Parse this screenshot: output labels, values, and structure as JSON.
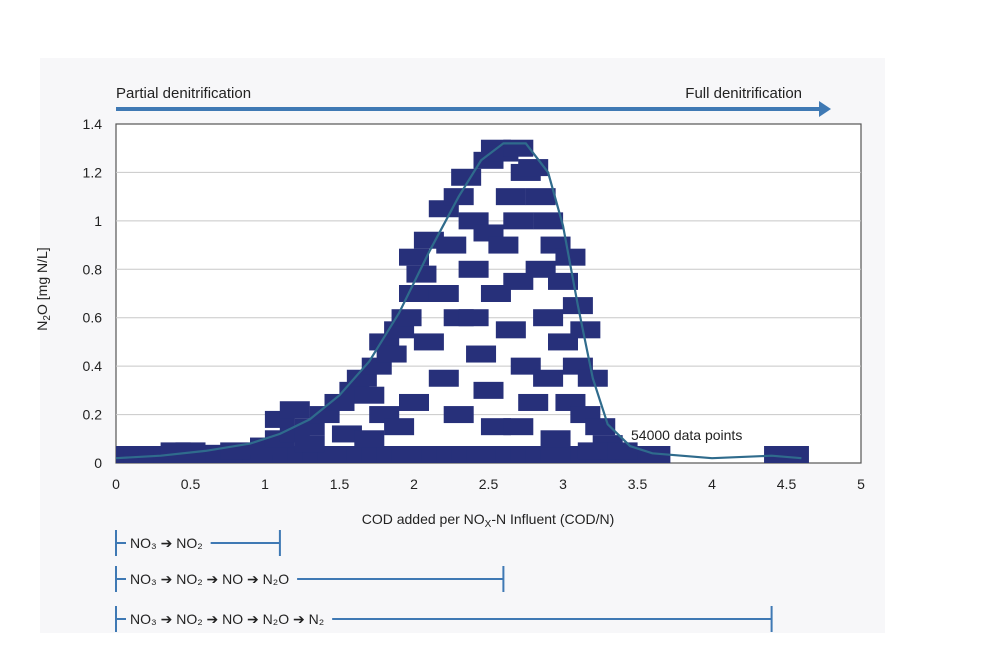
{
  "banner": {
    "left_label": "Partial denitrification",
    "right_label": "Full denitrification",
    "arrow_color": "#3f79b4"
  },
  "chart_data": {
    "type": "scatter",
    "title": "",
    "xlabel": "COD added per NOX-N Influent (COD/N)",
    "ylabel": "N2O [mg N/L]",
    "xlim": [
      0,
      5
    ],
    "ylim": [
      0,
      1.4
    ],
    "x_ticks": [
      "0",
      "0.5",
      "1",
      "1.5",
      "2",
      "2.5",
      "3",
      "3.5",
      "4",
      "4.5",
      "5"
    ],
    "y_ticks": [
      "0",
      "0.2",
      "0.4",
      "0.6",
      "0.8",
      "1",
      "1.2",
      "1.4"
    ],
    "grid": "horizontal",
    "annotation": "54000 data points",
    "marker_color": "#27307a",
    "curve_color": "#2f6b8c",
    "series": [
      {
        "kind": "scatter",
        "points": [
          [
            0.05,
            0.0
          ],
          [
            0.15,
            0.0
          ],
          [
            0.25,
            0.0
          ],
          [
            0.35,
            0.0
          ],
          [
            0.45,
            0.0
          ],
          [
            0.55,
            0.0
          ],
          [
            0.65,
            0.0
          ],
          [
            0.75,
            0.0
          ],
          [
            0.85,
            0.0
          ],
          [
            0.95,
            0.0
          ],
          [
            1.05,
            0.0
          ],
          [
            1.15,
            0.0
          ],
          [
            1.25,
            0.0
          ],
          [
            1.35,
            0.0
          ],
          [
            1.45,
            0.0
          ],
          [
            1.55,
            0.0
          ],
          [
            1.65,
            0.0
          ],
          [
            1.75,
            0.0
          ],
          [
            1.85,
            0.0
          ],
          [
            1.95,
            0.0
          ],
          [
            2.05,
            0.0
          ],
          [
            2.15,
            0.0
          ],
          [
            2.25,
            0.0
          ],
          [
            2.35,
            0.0
          ],
          [
            2.45,
            0.0
          ],
          [
            2.55,
            0.0
          ],
          [
            2.65,
            0.0
          ],
          [
            2.75,
            0.0
          ],
          [
            2.85,
            0.0
          ],
          [
            2.95,
            0.0
          ],
          [
            3.05,
            0.0
          ],
          [
            3.15,
            0.0
          ],
          [
            3.25,
            0.0
          ],
          [
            3.35,
            0.0
          ],
          [
            3.45,
            0.0
          ],
          [
            3.55,
            0.0
          ],
          [
            3.62,
            0.0
          ],
          [
            4.45,
            0.0
          ],
          [
            4.55,
            0.0
          ],
          [
            0.4,
            0.05
          ],
          [
            0.5,
            0.05
          ],
          [
            0.7,
            0.04
          ],
          [
            0.8,
            0.05
          ],
          [
            1.0,
            0.07
          ],
          [
            1.1,
            0.1
          ],
          [
            1.2,
            0.12
          ],
          [
            1.3,
            0.15
          ],
          [
            1.1,
            0.18
          ],
          [
            1.2,
            0.22
          ],
          [
            1.4,
            0.2
          ],
          [
            1.3,
            0.08
          ],
          [
            1.5,
            0.25
          ],
          [
            1.6,
            0.3
          ],
          [
            1.55,
            0.12
          ],
          [
            1.65,
            0.35
          ],
          [
            1.7,
            0.28
          ],
          [
            1.75,
            0.4
          ],
          [
            1.8,
            0.5
          ],
          [
            1.85,
            0.45
          ],
          [
            1.9,
            0.55
          ],
          [
            1.95,
            0.6
          ],
          [
            1.8,
            0.2
          ],
          [
            1.7,
            0.1
          ],
          [
            2.0,
            0.7
          ],
          [
            2.0,
            0.85
          ],
          [
            2.1,
            0.92
          ],
          [
            2.05,
            0.78
          ],
          [
            2.2,
            0.7
          ],
          [
            2.25,
            0.9
          ],
          [
            2.1,
            0.5
          ],
          [
            2.2,
            0.35
          ],
          [
            2.0,
            0.25
          ],
          [
            1.9,
            0.15
          ],
          [
            2.3,
            0.6
          ],
          [
            2.3,
            0.2
          ],
          [
            2.2,
            1.05
          ],
          [
            2.3,
            1.1
          ],
          [
            2.35,
            1.18
          ],
          [
            2.4,
            1.0
          ],
          [
            2.5,
            0.95
          ],
          [
            2.4,
            0.8
          ],
          [
            2.45,
            0.45
          ],
          [
            2.5,
            0.3
          ],
          [
            2.55,
            0.7
          ],
          [
            2.4,
            0.6
          ],
          [
            2.55,
            0.15
          ],
          [
            2.5,
            1.25
          ],
          [
            2.55,
            1.3
          ],
          [
            2.6,
            1.28
          ],
          [
            2.7,
            1.3
          ],
          [
            2.75,
            1.2
          ],
          [
            2.8,
            1.22
          ],
          [
            2.65,
            1.1
          ],
          [
            2.7,
            1.0
          ],
          [
            2.6,
            0.9
          ],
          [
            2.7,
            0.75
          ],
          [
            2.65,
            0.55
          ],
          [
            2.75,
            0.4
          ],
          [
            2.8,
            0.25
          ],
          [
            2.7,
            0.15
          ],
          [
            2.85,
            1.1
          ],
          [
            2.9,
            1.0
          ],
          [
            2.95,
            0.9
          ],
          [
            2.85,
            0.8
          ],
          [
            3.0,
            0.75
          ],
          [
            2.9,
            0.6
          ],
          [
            3.0,
            0.5
          ],
          [
            2.9,
            0.35
          ],
          [
            3.05,
            0.25
          ],
          [
            2.95,
            0.1
          ],
          [
            3.05,
            0.85
          ],
          [
            3.1,
            0.65
          ],
          [
            3.15,
            0.55
          ],
          [
            3.1,
            0.4
          ],
          [
            3.2,
            0.35
          ],
          [
            3.15,
            0.2
          ],
          [
            3.25,
            0.15
          ],
          [
            3.3,
            0.08
          ],
          [
            3.2,
            0.05
          ],
          [
            3.4,
            0.05
          ]
        ]
      },
      {
        "kind": "fit-curve",
        "points": [
          [
            0.0,
            0.02
          ],
          [
            0.3,
            0.03
          ],
          [
            0.6,
            0.05
          ],
          [
            0.9,
            0.08
          ],
          [
            1.1,
            0.12
          ],
          [
            1.3,
            0.18
          ],
          [
            1.5,
            0.28
          ],
          [
            1.7,
            0.42
          ],
          [
            1.9,
            0.62
          ],
          [
            2.1,
            0.87
          ],
          [
            2.3,
            1.1
          ],
          [
            2.45,
            1.25
          ],
          [
            2.6,
            1.32
          ],
          [
            2.75,
            1.32
          ],
          [
            2.9,
            1.2
          ],
          [
            3.0,
            0.98
          ],
          [
            3.1,
            0.65
          ],
          [
            3.2,
            0.35
          ],
          [
            3.3,
            0.16
          ],
          [
            3.45,
            0.07
          ],
          [
            3.6,
            0.04
          ],
          [
            4.0,
            0.02
          ],
          [
            4.4,
            0.03
          ],
          [
            4.6,
            0.02
          ]
        ]
      }
    ]
  },
  "reactions": [
    {
      "label": "NO₃ ➔ NO₂",
      "end_x": 1.1
    },
    {
      "label": "NO₃ ➔ NO₂ ➔ NO ➔ N₂O",
      "end_x": 2.6
    },
    {
      "label": "NO₃ ➔ NO₂ ➔ NO ➔ N₂O ➔ N₂",
      "end_x": 4.4
    }
  ]
}
